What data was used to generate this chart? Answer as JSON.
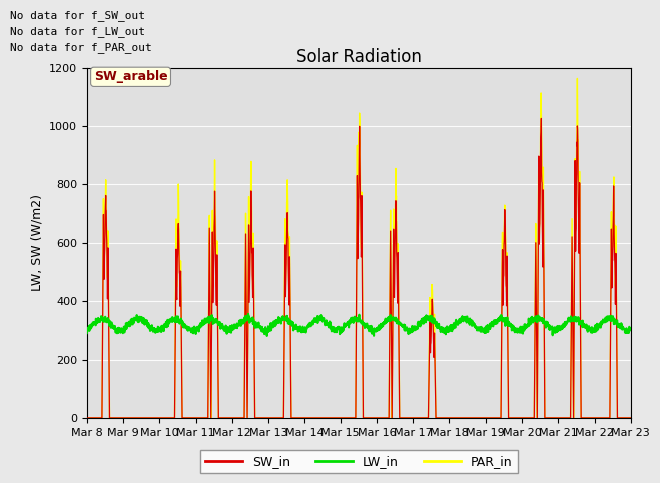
{
  "title": "Solar Radiation",
  "ylabel": "LW, SW (W/m2)",
  "ylim": [
    0,
    1200
  ],
  "yticks": [
    0,
    200,
    400,
    600,
    800,
    1000,
    1200
  ],
  "xtick_labels": [
    "Mar 8",
    "Mar 9",
    "Mar 10",
    "Mar 11",
    "Mar 12",
    "Mar 13",
    "Mar 14",
    "Mar 15",
    "Mar 16",
    "Mar 17",
    "Mar 18",
    "Mar 19",
    "Mar 20",
    "Mar 21",
    "Mar 22",
    "Mar 23"
  ],
  "no_data_texts": [
    "No data for f_SW_out",
    "No data for f_LW_out",
    "No data for f_PAR_out"
  ],
  "sw_arable_label": "SW_arable",
  "legend_entries": [
    {
      "label": "SW_in",
      "color": "#dd0000"
    },
    {
      "label": "LW_in",
      "color": "#00dd00"
    },
    {
      "label": "PAR_in",
      "color": "#ffff00"
    }
  ],
  "lw_in_base": 320,
  "fig_bg_color": "#e8e8e8",
  "plot_bg_color": "#e0e0e0",
  "sw_color": "#dd0000",
  "lw_color": "#00dd00",
  "par_color": "#ffff00",
  "title_fontsize": 12,
  "axis_fontsize": 9,
  "annotation_fontsize": 9,
  "n_days": 15,
  "pts_per_day": 144,
  "day_peak_sw": [
    840,
    0,
    750,
    780,
    790,
    780,
    0,
    1050,
    780,
    430,
    0,
    750,
    1100,
    1100,
    820
  ],
  "day_peak_par": [
    840,
    0,
    770,
    820,
    830,
    820,
    0,
    1060,
    820,
    450,
    0,
    770,
    1120,
    1120,
    840
  ],
  "day_has_morning_peak": [
    true,
    false,
    false,
    true,
    true,
    true,
    false,
    false,
    true,
    false,
    false,
    false,
    true,
    true,
    true
  ],
  "morning_peak_sw": [
    0,
    0,
    0,
    650,
    630,
    0,
    0,
    0,
    640,
    0,
    0,
    0,
    600,
    620,
    0
  ],
  "morning_peak_par": [
    0,
    0,
    0,
    660,
    650,
    0,
    0,
    0,
    650,
    0,
    0,
    0,
    610,
    630,
    0
  ]
}
